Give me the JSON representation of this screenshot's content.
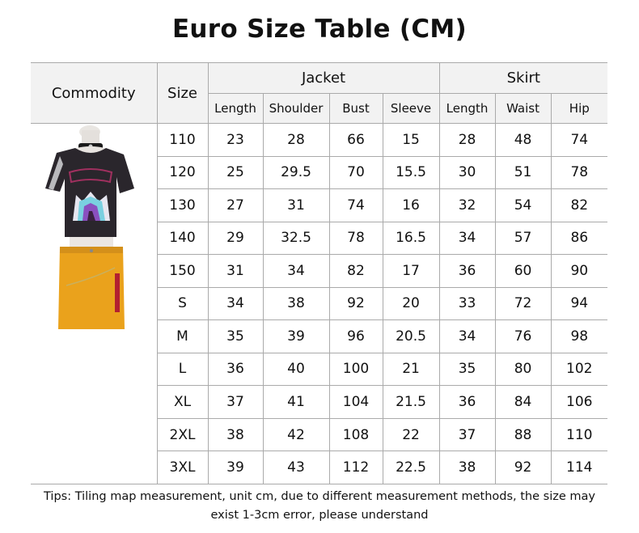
{
  "title": "Euro Size Table (CM)",
  "headers": {
    "commodity": "Commodity",
    "size": "Size",
    "jacket": "Jacket",
    "skirt": "Skirt",
    "jacket_cols": [
      "Length",
      "Shoulder",
      "Bust",
      "Sleeve"
    ],
    "skirt_cols": [
      "Length",
      "Waist",
      "Hip"
    ]
  },
  "product_image": "cropped black graphic tee with silver fringe shoulder and choker, yellow mini skirt with chain",
  "rows": [
    [
      "110",
      "23",
      "28",
      "66",
      "15",
      "28",
      "48",
      "74"
    ],
    [
      "120",
      "25",
      "29.5",
      "70",
      "15.5",
      "30",
      "51",
      "78"
    ],
    [
      "130",
      "27",
      "31",
      "74",
      "16",
      "32",
      "54",
      "82"
    ],
    [
      "140",
      "29",
      "32.5",
      "78",
      "16.5",
      "34",
      "57",
      "86"
    ],
    [
      "150",
      "31",
      "34",
      "82",
      "17",
      "36",
      "60",
      "90"
    ],
    [
      "S",
      "34",
      "38",
      "92",
      "20",
      "33",
      "72",
      "94"
    ],
    [
      "M",
      "35",
      "39",
      "96",
      "20.5",
      "34",
      "76",
      "98"
    ],
    [
      "L",
      "36",
      "40",
      "100",
      "21",
      "35",
      "80",
      "102"
    ],
    [
      "XL",
      "37",
      "41",
      "104",
      "21.5",
      "36",
      "84",
      "106"
    ],
    [
      "2XL",
      "38",
      "42",
      "108",
      "22",
      "37",
      "88",
      "110"
    ],
    [
      "3XL",
      "39",
      "43",
      "112",
      "22.5",
      "38",
      "92",
      "114"
    ]
  ],
  "tips": [
    "Tips: Tiling map measurement, unit cm, due to different measurement methods, the size may",
    "exist 1-3cm error, please understand"
  ]
}
